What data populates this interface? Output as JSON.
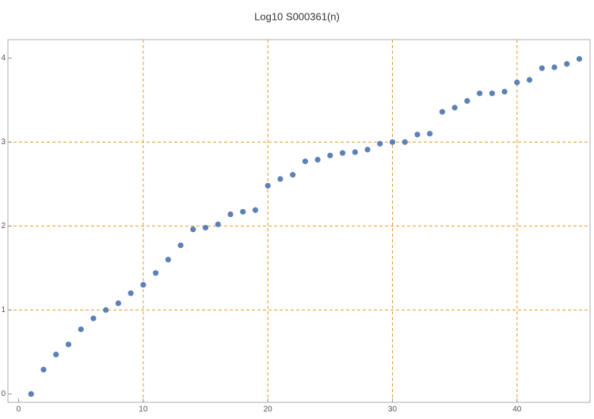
{
  "chart_data": {
    "type": "scatter",
    "title": "Log10 S000361(n)",
    "x": [
      1,
      2,
      3,
      4,
      5,
      6,
      7,
      8,
      9,
      10,
      11,
      12,
      13,
      14,
      15,
      16,
      17,
      18,
      19,
      20,
      21,
      22,
      23,
      24,
      25,
      26,
      27,
      28,
      29,
      30,
      31,
      32,
      33,
      34,
      35,
      36,
      37,
      38,
      39,
      40,
      41,
      42,
      43,
      44,
      45
    ],
    "values": [
      0,
      0.29,
      0.47,
      0.59,
      0.77,
      0.9,
      1.0,
      1.08,
      1.2,
      1.3,
      1.44,
      1.6,
      1.77,
      1.96,
      1.98,
      2.02,
      2.14,
      2.17,
      2.19,
      2.48,
      2.56,
      2.61,
      2.77,
      2.79,
      2.84,
      2.87,
      2.88,
      2.91,
      2.98,
      3.0,
      3.0,
      3.09,
      3.1,
      3.36,
      3.41,
      3.49,
      3.58,
      3.58,
      3.6,
      3.71,
      3.74,
      3.88,
      3.89,
      3.93,
      3.99
    ],
    "color": "#5e81b5",
    "xlim": [
      -0.86,
      45.86
    ],
    "ylim": [
      -0.1,
      4.22
    ],
    "xticks": [
      0,
      10,
      20,
      30,
      40
    ],
    "yticks": [
      0,
      1,
      2,
      3,
      4
    ],
    "xgrid": [
      10,
      20,
      30,
      40
    ],
    "ygrid": [
      1,
      2,
      3
    ],
    "grid_color": "#e69a2e"
  }
}
